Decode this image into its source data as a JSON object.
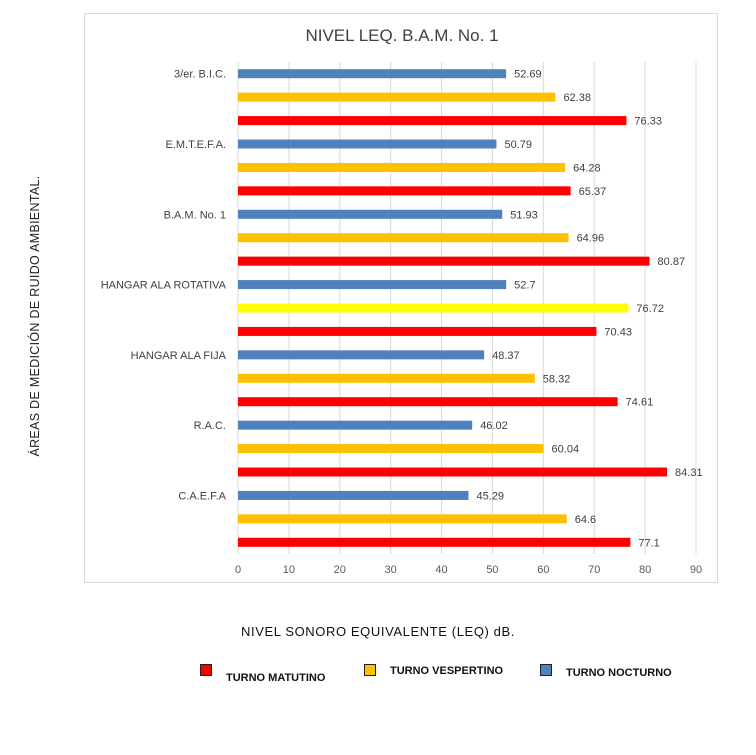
{
  "chart_data": {
    "type": "bar",
    "orientation": "horizontal",
    "title": "NIVEL LEQ. B.A.M. No. 1",
    "categories": [
      "3/er. B.I.C.",
      "E.M.T.E.F.A.",
      "B.A.M. No. 1",
      "HANGAR ALA ROTATIVA",
      "HANGAR ALA FIJA",
      "R.A.C.",
      "C.A.E.F.A"
    ],
    "series": [
      {
        "name": "TURNO MATUTINO",
        "color": "#ff0000",
        "values": [
          76.33,
          65.37,
          80.87,
          70.43,
          74.61,
          84.31,
          77.1
        ],
        "labels": [
          "76.33",
          "65.37",
          "80.87",
          "70.43",
          "74.61",
          "84.31",
          "77.1"
        ]
      },
      {
        "name": "TURNO VESPERTINO",
        "color": "#ffc000",
        "values": [
          62.38,
          64.28,
          64.96,
          76.72,
          58.32,
          60.04,
          64.6
        ],
        "labels": [
          "62.38",
          "64.28",
          "64.96",
          "76.72",
          "58.32",
          "60.04",
          "64.6"
        ],
        "highlight_color": "#ffff00",
        "highlight_index": 3
      },
      {
        "name": "TURNO NOCTURNO",
        "color": "#4f81bd",
        "values": [
          52.69,
          50.79,
          51.93,
          52.7,
          48.37,
          46.02,
          45.29
        ],
        "labels": [
          "52.69",
          "50.79",
          "51.93",
          "52.7",
          "48.37",
          "46.02",
          "45.29"
        ]
      }
    ],
    "x_ticks": [
      "0",
      "10",
      "20",
      "30",
      "40",
      "50",
      "60",
      "70",
      "80",
      "90"
    ],
    "xlim": [
      0,
      90
    ],
    "xlabel": "NIVEL SONORO EQUIVALENTE (LEQ) dB.",
    "ylabel": "ÁREAS DE MEDICIÓN DE RUIDO AMBIENTAL.",
    "grid": true,
    "legend_position": "bottom"
  },
  "legend": {
    "items": [
      {
        "label": "TURNO MATUTINO",
        "color": "#ff0000"
      },
      {
        "label": "TURNO VESPERTINO",
        "color": "#ffc000"
      },
      {
        "label": "TURNO NOCTURNO",
        "color": "#4f81bd"
      }
    ]
  }
}
